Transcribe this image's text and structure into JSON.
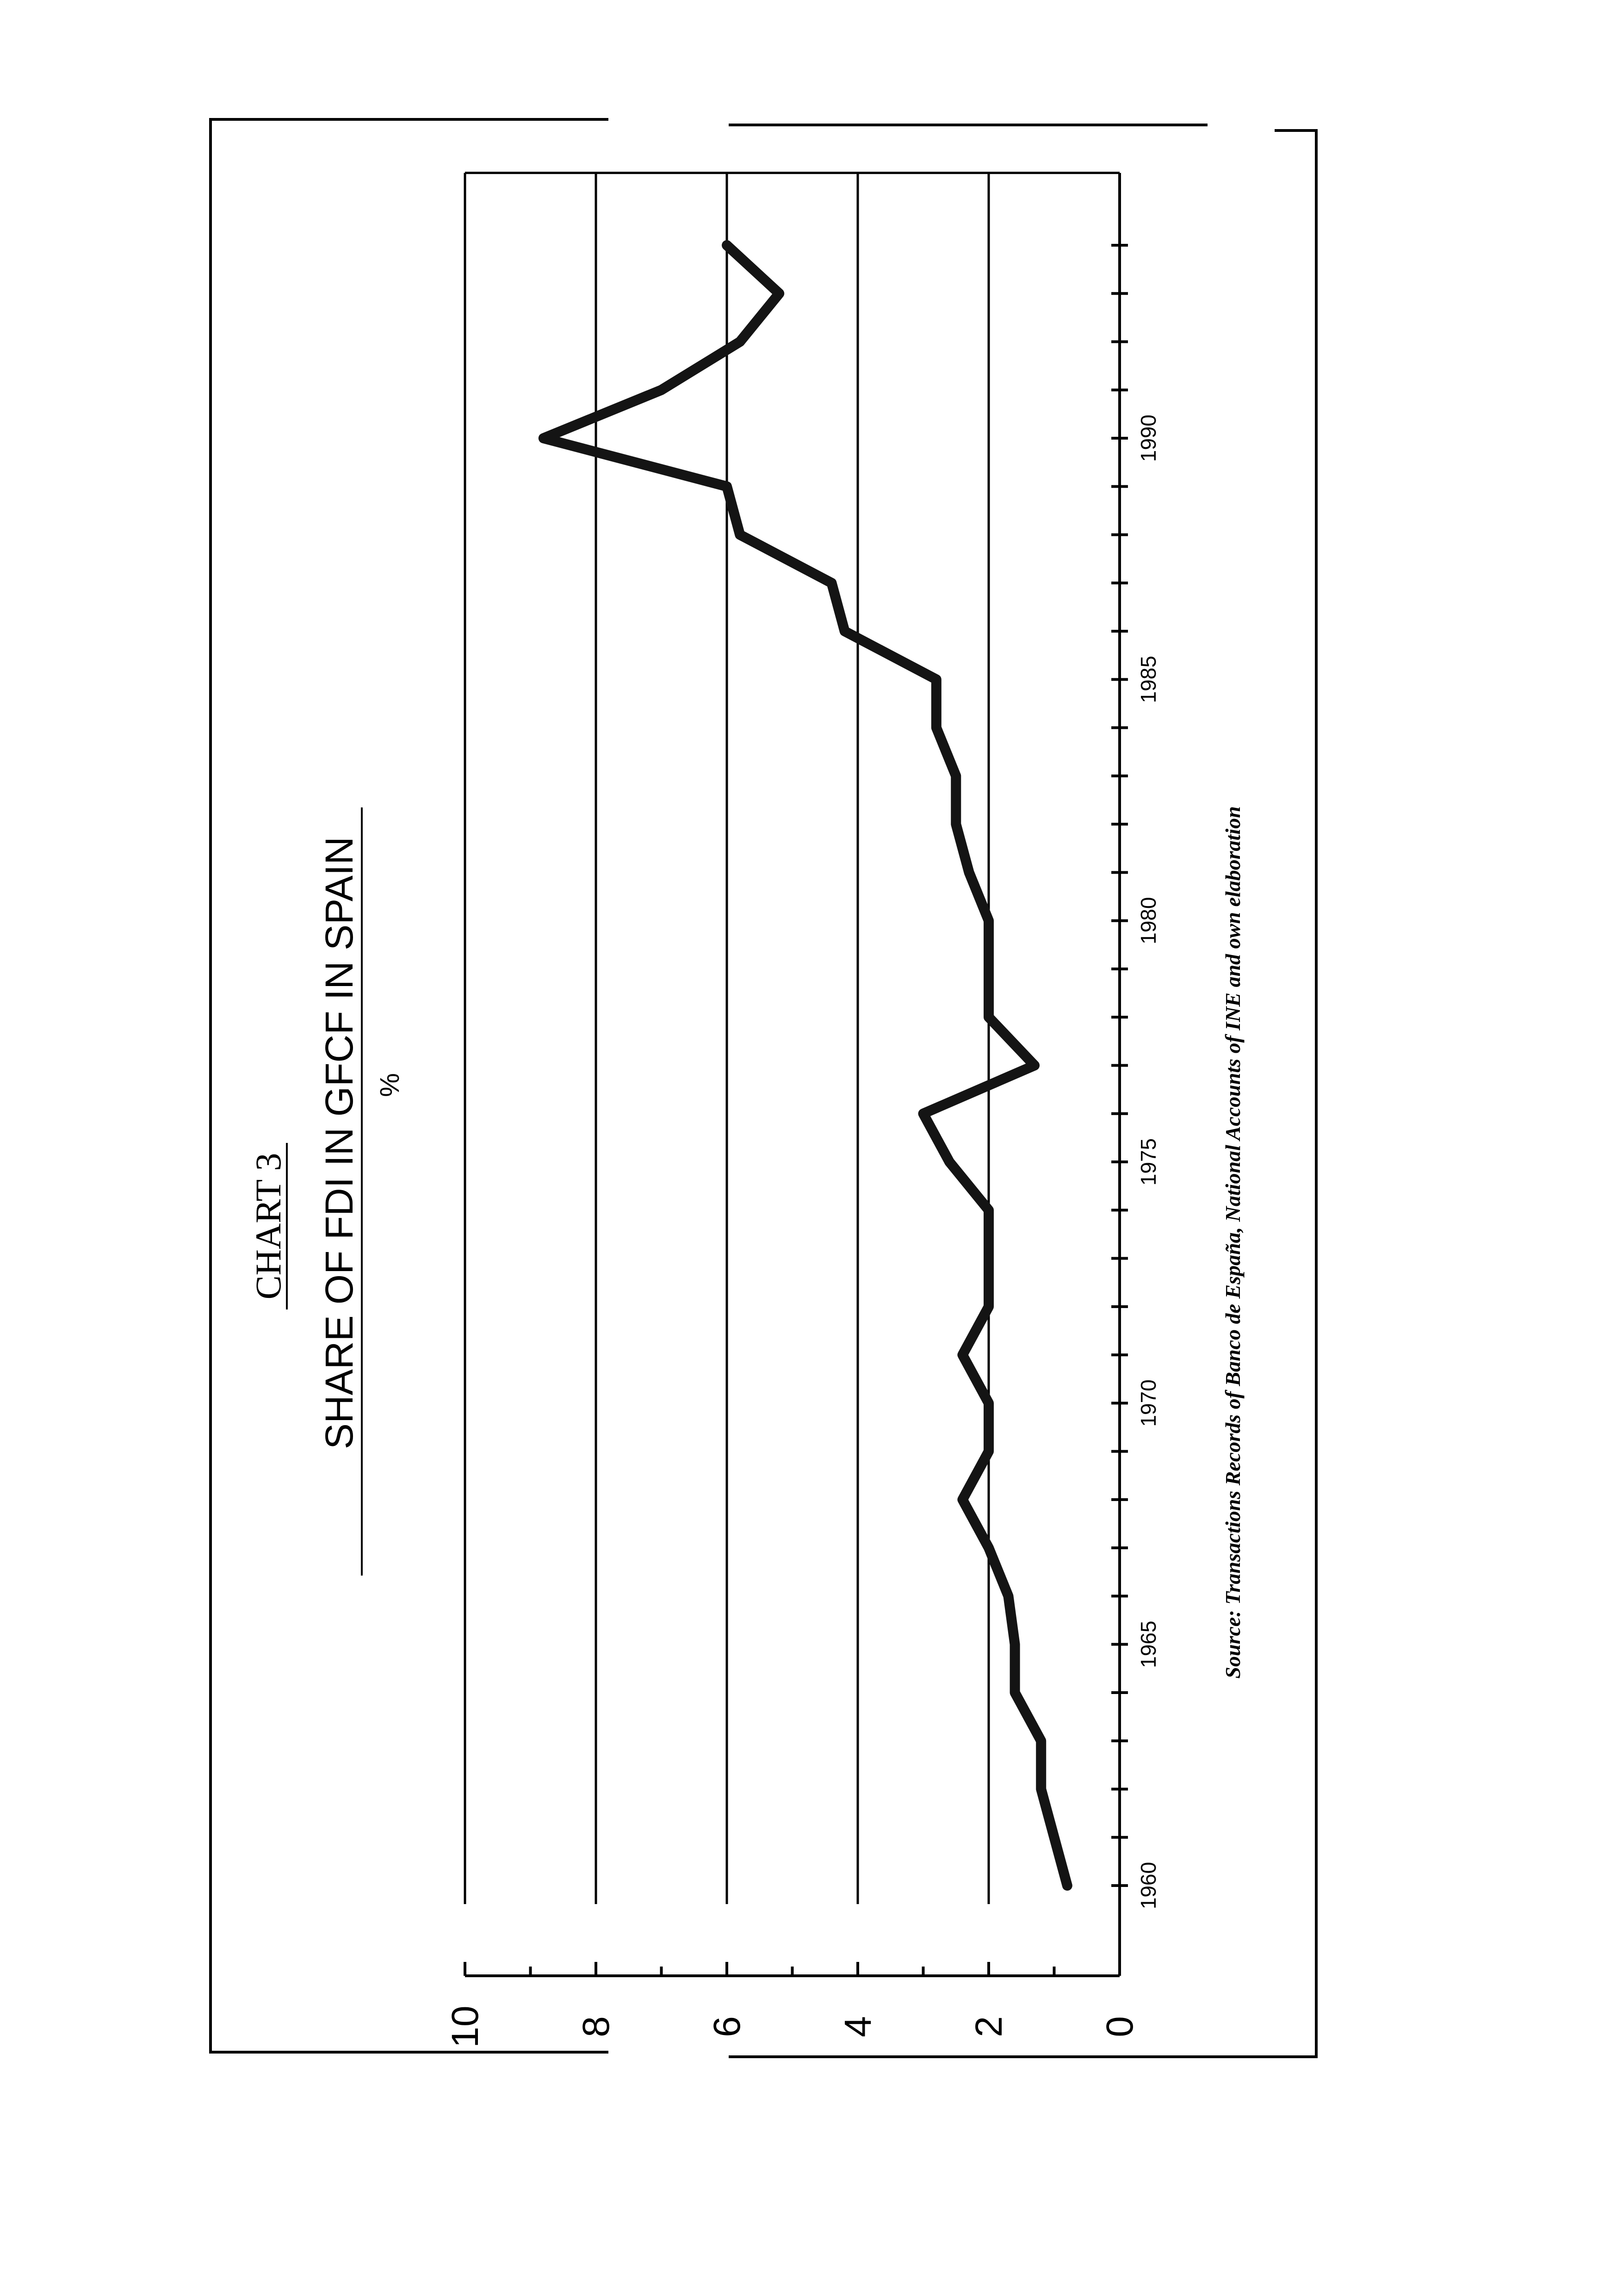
{
  "chart_data": {
    "type": "line",
    "title": "CHART 3",
    "subtitle": "SHARE OF FDI IN GFCF IN SPAIN",
    "unit": "%",
    "ylim": [
      0,
      10
    ],
    "yticks": [
      "0",
      "2",
      "4",
      "6",
      "8",
      "10"
    ],
    "xlim": [
      1960,
      1994
    ],
    "xtick_labels": [
      "1960",
      "1965",
      "1970",
      "1975",
      "1980",
      "1985",
      "1990"
    ],
    "grid": true,
    "source": "Source: Transactions Records of Banco de España, National Accounts of INE and own elaboration",
    "series": [
      {
        "x": [
          1960,
          1961,
          1962,
          1963,
          1964,
          1965,
          1966,
          1967,
          1968,
          1969,
          1970,
          1971,
          1972,
          1973,
          1974,
          1975,
          1976,
          1977,
          1978,
          1979,
          1980,
          1981,
          1982,
          1983,
          1984,
          1985,
          1986,
          1987,
          1988,
          1989,
          1990,
          1991,
          1992,
          1993,
          1994
        ],
        "values": [
          0.8,
          1.0,
          1.2,
          1.2,
          1.6,
          1.6,
          1.7,
          2.0,
          2.4,
          2.0,
          2.0,
          2.4,
          2.0,
          2.0,
          2.0,
          2.6,
          3.0,
          1.3,
          2.0,
          2.0,
          2.0,
          2.3,
          2.5,
          2.5,
          2.8,
          2.8,
          4.2,
          4.4,
          5.8,
          6.0,
          8.8,
          7.0,
          5.8,
          5.2,
          6.0
        ]
      }
    ]
  }
}
